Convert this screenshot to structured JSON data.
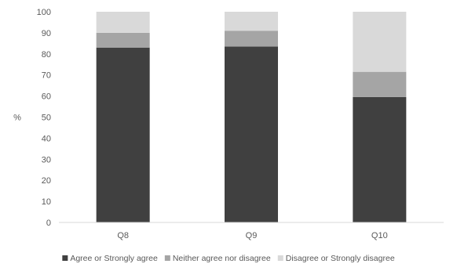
{
  "chart_data": {
    "type": "bar",
    "stacked": true,
    "title": "",
    "xlabel": "",
    "ylabel": "%",
    "ylim": [
      0,
      100
    ],
    "yticks": [
      0,
      10,
      20,
      30,
      40,
      50,
      60,
      70,
      80,
      90,
      100
    ],
    "grid": false,
    "legend_position": "bottom",
    "categories": [
      "Q8",
      "Q9",
      "Q10"
    ],
    "series": [
      {
        "name": "Agree or Strongly agree",
        "values": [
          83,
          83.5,
          59.5
        ],
        "color": "#404040"
      },
      {
        "name": "Neither agree nor disagree",
        "values": [
          7,
          7.5,
          12
        ],
        "color": "#a5a5a5"
      },
      {
        "name": "Disagree or Strongly disagree",
        "values": [
          10,
          9,
          28.5
        ],
        "color": "#d9d9d9"
      }
    ]
  }
}
